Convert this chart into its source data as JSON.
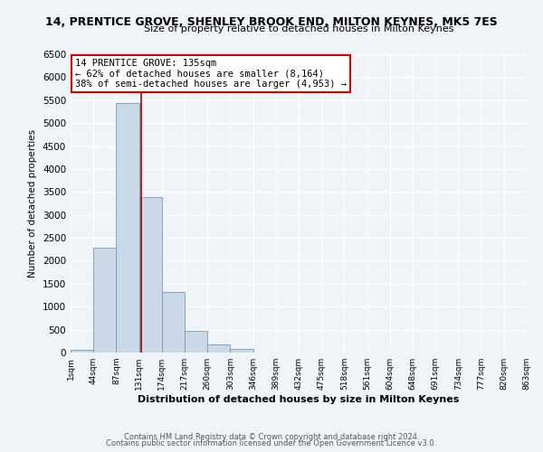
{
  "title": "14, PRENTICE GROVE, SHENLEY BROOK END, MILTON KEYNES, MK5 7ES",
  "subtitle": "Size of property relative to detached houses in Milton Keynes",
  "xlabel": "Distribution of detached houses by size in Milton Keynes",
  "ylabel": "Number of detached properties",
  "bin_labels": [
    "1sqm",
    "44sqm",
    "87sqm",
    "131sqm",
    "174sqm",
    "217sqm",
    "260sqm",
    "303sqm",
    "346sqm",
    "389sqm",
    "432sqm",
    "475sqm",
    "518sqm",
    "561sqm",
    "604sqm",
    "648sqm",
    "691sqm",
    "734sqm",
    "777sqm",
    "820sqm",
    "863sqm"
  ],
  "bar_heights": [
    60,
    2280,
    5430,
    3380,
    1310,
    480,
    185,
    85,
    0,
    0,
    0,
    0,
    0,
    0,
    0,
    0,
    0,
    0,
    0,
    0
  ],
  "bar_color": "#c9d9e8",
  "bar_edge_color": "#7799bb",
  "ylim": [
    0,
    6500
  ],
  "yticks": [
    0,
    500,
    1000,
    1500,
    2000,
    2500,
    3000,
    3500,
    4000,
    4500,
    5000,
    5500,
    6000,
    6500
  ],
  "vline_color": "#aa0000",
  "annotation_title": "14 PRENTICE GROVE: 135sqm",
  "annotation_line1": "← 62% of detached houses are smaller (8,164)",
  "annotation_line2": "38% of semi-detached houses are larger (4,953) →",
  "annotation_box_color": "#ffffff",
  "annotation_box_edge": "#cc0000",
  "footer1": "Contains HM Land Registry data © Crown copyright and database right 2024.",
  "footer2": "Contains public sector information licensed under the Open Government Licence v3.0.",
  "bg_color": "#f0f4f8",
  "plot_bg_color": "#f0f4f8"
}
